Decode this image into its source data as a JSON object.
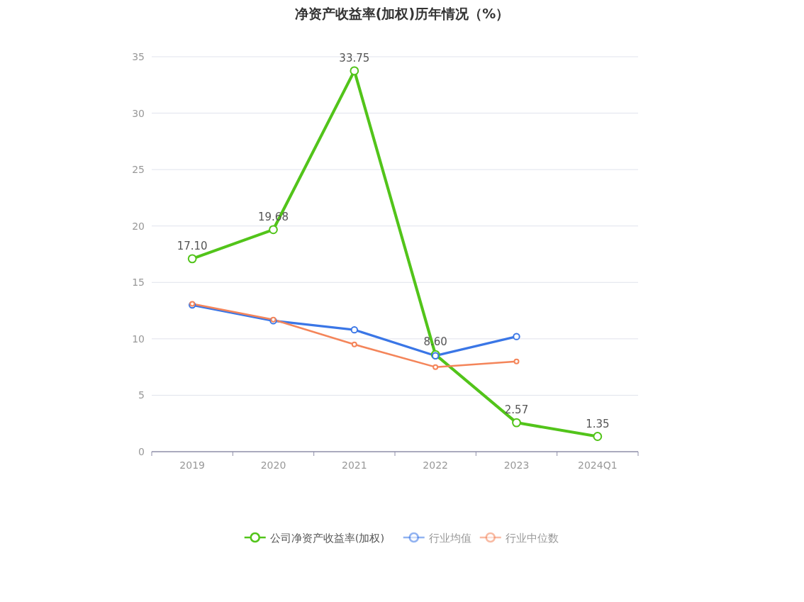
{
  "chart_data": {
    "type": "line",
    "title": "净资产收益率(加权)历年情况（%）",
    "categories": [
      "2019",
      "2020",
      "2021",
      "2022",
      "2023",
      "2024Q1"
    ],
    "series": [
      {
        "name": "公司净资产收益率(加权)",
        "color": "#52c41a",
        "values": [
          17.1,
          19.68,
          33.75,
          8.6,
          2.57,
          1.35
        ],
        "value_labels": [
          "17.10",
          "19.68",
          "33.75",
          "8.60",
          "2.57",
          "1.35"
        ]
      },
      {
        "name": "行业均值",
        "color": "#3a76e6",
        "values": [
          13.0,
          11.6,
          10.8,
          8.5,
          10.2,
          null
        ]
      },
      {
        "name": "行业中位数",
        "color": "#f4855a",
        "values": [
          13.1,
          11.7,
          9.5,
          7.5,
          8.0,
          null
        ]
      }
    ],
    "ylim": [
      0,
      35
    ],
    "yticks": [
      0,
      5,
      10,
      15,
      20,
      25,
      30,
      35
    ],
    "grid": "y",
    "legend": "bottom",
    "marker": "circle",
    "line_style": "solid"
  }
}
